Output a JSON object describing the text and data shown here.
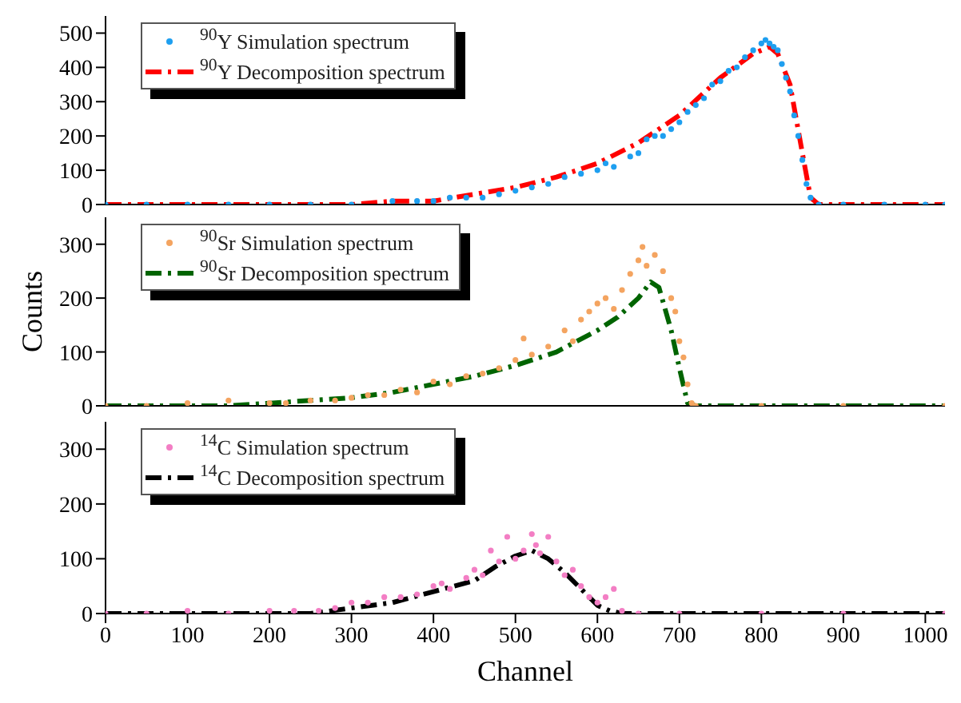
{
  "chart_data": [
    {
      "type": "scatter",
      "xlim": [
        0,
        1024
      ],
      "xticks": [
        0,
        100,
        200,
        300,
        400,
        500,
        600,
        700,
        800,
        900,
        1000
      ],
      "ylim": [
        0,
        550
      ],
      "yticks": [
        0,
        100,
        200,
        300,
        400,
        500
      ],
      "tick_labels": "y",
      "legend": "top left",
      "grid": false,
      "series": [
        {
          "name": "$^{90}$Y Simulation spectrum",
          "type": "scatter",
          "marker": "circle",
          "color": "#1e9ff0",
          "x": [
            0,
            50,
            100,
            150,
            200,
            250,
            300,
            350,
            380,
            400,
            420,
            440,
            460,
            480,
            500,
            520,
            540,
            560,
            580,
            600,
            610,
            620,
            640,
            650,
            660,
            670,
            680,
            690,
            700,
            710,
            720,
            730,
            740,
            750,
            760,
            770,
            780,
            790,
            800,
            805,
            810,
            815,
            820,
            825,
            830,
            835,
            840,
            845,
            850,
            855,
            860,
            870,
            900,
            950,
            1000,
            1024
          ],
          "values": [
            0,
            0,
            0,
            0,
            0,
            0,
            0,
            10,
            10,
            10,
            20,
            20,
            20,
            30,
            40,
            50,
            60,
            80,
            90,
            100,
            120,
            110,
            140,
            150,
            190,
            200,
            200,
            220,
            240,
            270,
            290,
            310,
            350,
            360,
            390,
            400,
            430,
            450,
            470,
            480,
            470,
            460,
            450,
            410,
            370,
            330,
            260,
            200,
            130,
            60,
            20,
            0,
            0,
            0,
            0,
            0
          ]
        },
        {
          "name": "$^{90}$Y Decomposition spectrum",
          "type": "line",
          "marker": "none",
          "line_style": "dashed",
          "color": "#ff0000",
          "x": [
            0,
            300,
            350,
            400,
            450,
            500,
            550,
            600,
            650,
            700,
            750,
            790,
            810,
            820,
            835,
            850,
            860,
            870,
            1024
          ],
          "values": [
            0,
            0,
            10,
            10,
            30,
            50,
            80,
            120,
            180,
            260,
            370,
            440,
            460,
            440,
            350,
            150,
            20,
            0,
            0
          ]
        }
      ]
    },
    {
      "type": "scatter",
      "ylabel": "Counts",
      "xlim": [
        0,
        1024
      ],
      "xticks": [
        0,
        100,
        200,
        300,
        400,
        500,
        600,
        700,
        800,
        900,
        1000
      ],
      "ylim": [
        0,
        350
      ],
      "yticks": [
        0,
        100,
        200,
        300
      ],
      "tick_labels": "y",
      "legend": "top left",
      "grid": false,
      "series": [
        {
          "name": "$^{90}$Sr Simulation spectrum",
          "type": "scatter",
          "marker": "circle",
          "color": "#f4a460",
          "x": [
            0,
            50,
            100,
            150,
            200,
            220,
            250,
            280,
            300,
            320,
            340,
            360,
            380,
            400,
            420,
            440,
            460,
            480,
            500,
            510,
            520,
            540,
            560,
            570,
            580,
            590,
            600,
            610,
            620,
            630,
            640,
            650,
            655,
            660,
            670,
            680,
            690,
            695,
            700,
            705,
            710,
            715,
            720,
            800,
            900,
            1024
          ],
          "values": [
            0,
            0,
            5,
            10,
            5,
            5,
            10,
            10,
            15,
            20,
            20,
            30,
            25,
            45,
            40,
            55,
            60,
            70,
            85,
            125,
            95,
            110,
            140,
            120,
            160,
            175,
            190,
            200,
            180,
            215,
            245,
            270,
            295,
            260,
            280,
            250,
            200,
            175,
            120,
            90,
            40,
            5,
            0,
            0,
            0,
            0
          ]
        },
        {
          "name": "$^{90}$Sr Decomposition spectrum",
          "type": "line",
          "marker": "none",
          "line_style": "dashed",
          "color": "#006400",
          "x": [
            0,
            150,
            200,
            250,
            300,
            350,
            400,
            450,
            500,
            550,
            600,
            625,
            650,
            665,
            675,
            690,
            700,
            710,
            720,
            1024
          ],
          "values": [
            0,
            0,
            5,
            10,
            15,
            25,
            40,
            55,
            75,
            100,
            140,
            165,
            200,
            230,
            220,
            140,
            70,
            5,
            0,
            0
          ]
        }
      ]
    },
    {
      "type": "scatter",
      "xlabel": "Channel",
      "xlim": [
        0,
        1024
      ],
      "xticks": [
        0,
        100,
        200,
        300,
        400,
        500,
        600,
        700,
        800,
        900,
        1000
      ],
      "ylim": [
        0,
        350
      ],
      "yticks": [
        0,
        100,
        200,
        300
      ],
      "legend": "top left",
      "grid": false,
      "series": [
        {
          "name": "$^{14}$C Simulation spectrum",
          "type": "scatter",
          "marker": "circle",
          "color": "#f37ec4",
          "x": [
            0,
            50,
            100,
            150,
            200,
            230,
            260,
            280,
            300,
            320,
            340,
            360,
            380,
            400,
            410,
            420,
            440,
            450,
            460,
            470,
            480,
            490,
            500,
            510,
            520,
            525,
            530,
            540,
            550,
            560,
            570,
            580,
            590,
            600,
            610,
            620,
            630,
            650,
            700,
            800,
            900,
            1024
          ],
          "values": [
            0,
            0,
            5,
            0,
            5,
            5,
            5,
            10,
            20,
            20,
            30,
            30,
            35,
            50,
            55,
            45,
            65,
            80,
            70,
            115,
            95,
            140,
            100,
            115,
            145,
            125,
            110,
            140,
            95,
            70,
            80,
            50,
            30,
            20,
            30,
            45,
            5,
            0,
            0,
            0,
            0,
            0
          ]
        },
        {
          "name": "$^{14}$C Decomposition spectrum",
          "type": "line",
          "marker": "none",
          "line_style": "dashed",
          "color": "#000000",
          "x": [
            0,
            250,
            300,
            350,
            400,
            450,
            475,
            500,
            520,
            540,
            560,
            580,
            600,
            615,
            630,
            1024
          ],
          "values": [
            0,
            0,
            10,
            20,
            40,
            60,
            85,
            105,
            115,
            100,
            75,
            45,
            15,
            5,
            0,
            0
          ]
        }
      ]
    }
  ]
}
